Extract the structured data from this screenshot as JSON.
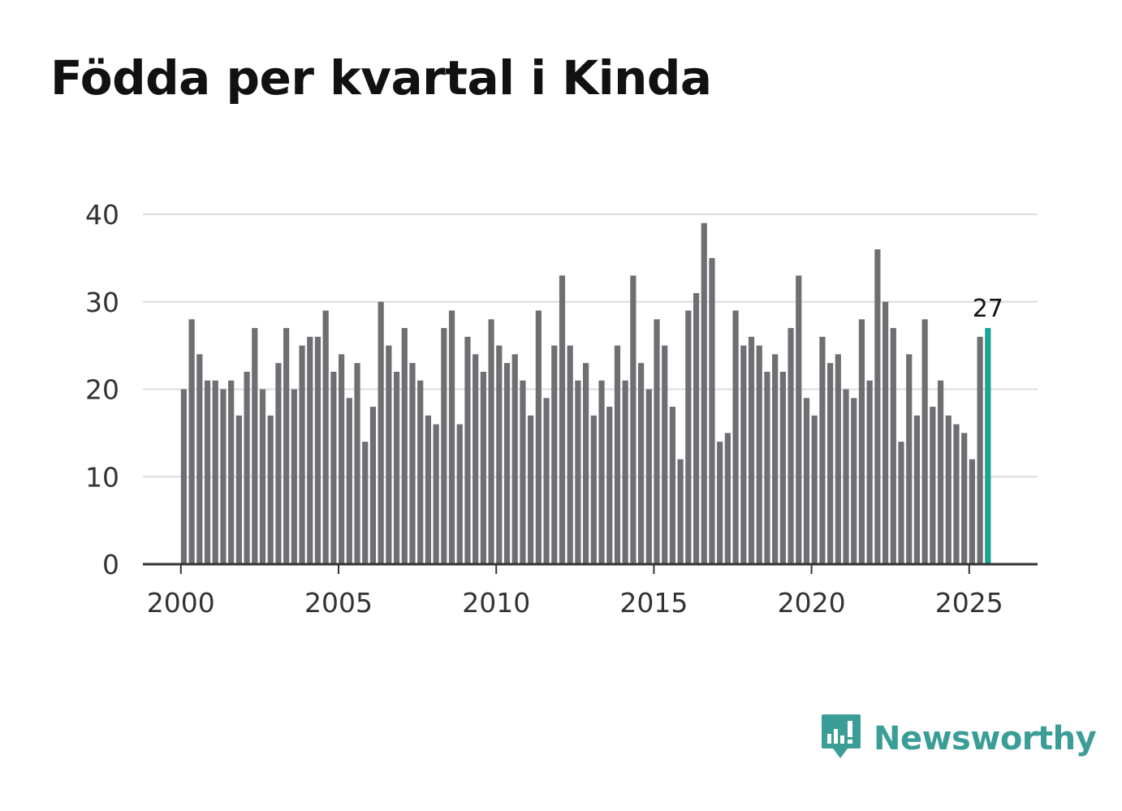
{
  "title": "Födda per kvartal i Kinda",
  "brand": {
    "name": "Newsworthy",
    "icon": "newsworthy-logo-icon",
    "color": "#3a9e97"
  },
  "chart_data": {
    "type": "bar",
    "title": "Födda per kvartal i Kinda",
    "xlabel": "",
    "ylabel": "",
    "ylim": [
      0,
      40
    ],
    "yticks": [
      0,
      10,
      20,
      30,
      40
    ],
    "xticks": [
      "2000",
      "2005",
      "2010",
      "2015",
      "2020",
      "2025"
    ],
    "grid": true,
    "start": "2000 Q1",
    "frequency": "quarterly",
    "bar_color": "#6f6f73",
    "highlight_color": "#1aa394",
    "highlight_label": "27",
    "values": [
      20,
      28,
      24,
      21,
      21,
      20,
      21,
      17,
      22,
      27,
      20,
      17,
      23,
      27,
      20,
      25,
      26,
      26,
      29,
      22,
      24,
      19,
      23,
      14,
      18,
      30,
      25,
      22,
      27,
      23,
      21,
      17,
      16,
      27,
      29,
      16,
      26,
      24,
      22,
      28,
      25,
      23,
      24,
      21,
      17,
      29,
      19,
      25,
      33,
      25,
      21,
      23,
      17,
      21,
      18,
      25,
      21,
      33,
      23,
      20,
      28,
      25,
      18,
      12,
      29,
      31,
      39,
      35,
      14,
      15,
      29,
      25,
      26,
      25,
      22,
      24,
      22,
      27,
      33,
      19,
      17,
      26,
      23,
      24,
      20,
      19,
      28,
      21,
      36,
      30,
      27,
      14,
      24,
      17,
      28,
      18,
      21,
      17,
      16,
      15,
      12,
      26,
      27
    ]
  }
}
